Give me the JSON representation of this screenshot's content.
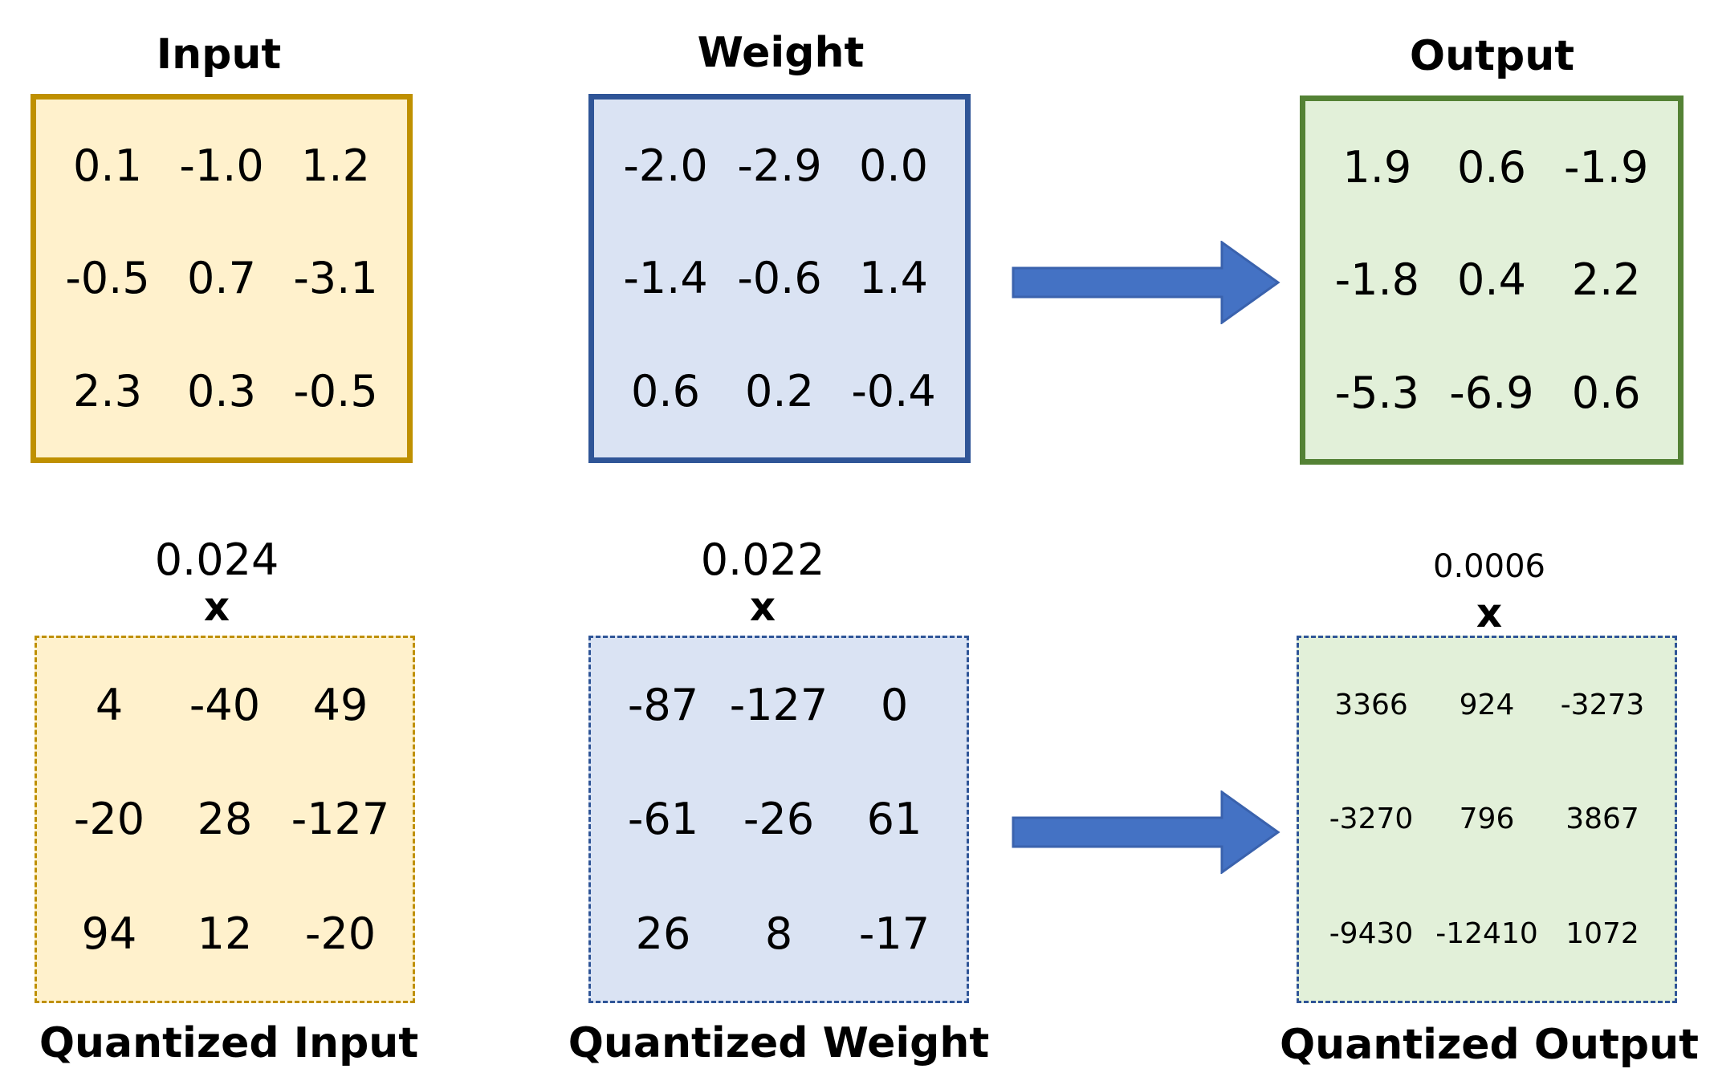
{
  "top": {
    "input": {
      "title": "Input",
      "cells": [
        "0.1",
        "-1.0",
        "1.2",
        "-0.5",
        "0.7",
        "-3.1",
        "2.3",
        "0.3",
        "-0.5"
      ]
    },
    "weight": {
      "title": "Weight",
      "cells": [
        "-2.0",
        "-2.9",
        "0.0",
        "-1.4",
        "-0.6",
        "1.4",
        "0.6",
        "0.2",
        "-0.4"
      ]
    },
    "output": {
      "title": "Output",
      "cells": [
        "1.9",
        "0.6",
        "-1.9",
        "-1.8",
        "0.4",
        "2.2",
        "-5.3",
        "-6.9",
        "0.6"
      ]
    }
  },
  "bottom": {
    "input": {
      "scale": "0.024",
      "multiply": "x",
      "title": "Quantized Input",
      "cells": [
        "4",
        "-40",
        "49",
        "-20",
        "28",
        "-127",
        "94",
        "12",
        "-20"
      ]
    },
    "weight": {
      "scale": "0.022",
      "multiply": "x",
      "title": "Quantized Weight",
      "cells": [
        "-87",
        "-127",
        "0",
        "-61",
        "-26",
        "61",
        "26",
        "8",
        "-17"
      ]
    },
    "output": {
      "scale": "0.0006",
      "multiply": "x",
      "title": "Quantized Output",
      "cells": [
        "3366",
        "924",
        "-3273",
        "-3270",
        "796",
        "3867",
        "-9430",
        "-12410",
        "1072"
      ]
    }
  },
  "colors": {
    "input_fill": "#fff1cc",
    "input_border": "#bf9000",
    "weight_fill": "#dae3f3",
    "weight_border": "#2f5597",
    "output_fill": "#e2f0d9",
    "output_border": "#548235",
    "arrow": "#4472c4"
  }
}
